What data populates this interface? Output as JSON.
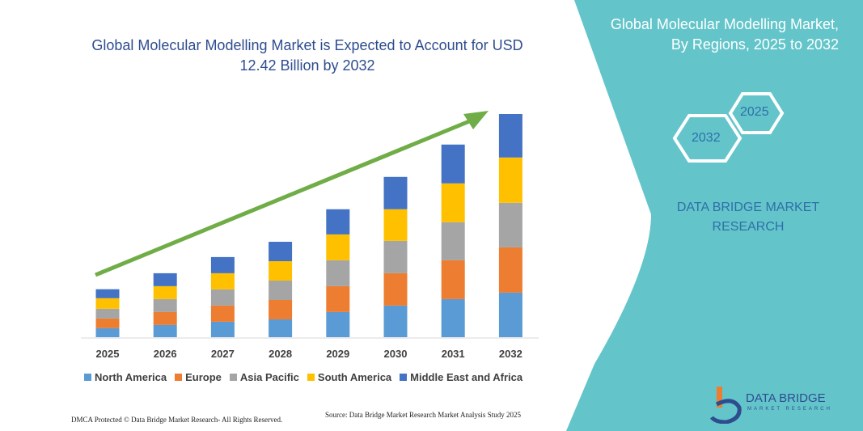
{
  "header": {
    "title": "Global Molecular Modelling Market is Expected to Account for USD 12.42 Billion by 2032",
    "side_title_line1": "Global Molecular Modelling Market,",
    "side_title_line2": "By Regions, 2025 to 2032",
    "hex_start": "2025",
    "hex_end": "2032",
    "brand_line1": "DATA BRIDGE MARKET",
    "brand_line2": "RESEARCH"
  },
  "colors": {
    "panel": "#63c5ca",
    "arrow": "#70ad47"
  },
  "chart_data": {
    "type": "bar",
    "stacked": true,
    "categories": [
      "2025",
      "2026",
      "2027",
      "2028",
      "2029",
      "2030",
      "2031",
      "2032"
    ],
    "series": [
      {
        "name": "North America",
        "color": "#5b9bd5",
        "values": [
          0.5,
          0.68,
          0.86,
          0.99,
          1.4,
          1.76,
          2.12,
          2.48
        ]
      },
      {
        "name": "Europe",
        "color": "#ed7d31",
        "values": [
          0.54,
          0.72,
          0.9,
          1.08,
          1.44,
          1.8,
          2.16,
          2.52
        ]
      },
      {
        "name": "Asia Pacific",
        "color": "#a5a5a5",
        "values": [
          0.54,
          0.72,
          0.9,
          1.08,
          1.44,
          1.8,
          2.12,
          2.48
        ]
      },
      {
        "name": "South America",
        "color": "#ffc000",
        "values": [
          0.59,
          0.72,
          0.9,
          1.08,
          1.44,
          1.76,
          2.16,
          2.52
        ]
      },
      {
        "name": "Middle East and Africa",
        "color": "#4472c4",
        "values": [
          0.5,
          0.72,
          0.9,
          1.08,
          1.4,
          1.8,
          2.16,
          2.42
        ]
      }
    ],
    "ylim": [
      0,
      12.42
    ],
    "grid": false,
    "legend": "bottom",
    "trend_arrow": true
  },
  "footer": {
    "dmca": "DMCA Protected © Data Bridge Market Research- All Rights Reserved.",
    "source": "Source: Data Bridge Market Research  Market Analysis Study 2025",
    "logo_text": "DATA BRIDGE",
    "logo_sub": "MARKET RESEARCH"
  }
}
